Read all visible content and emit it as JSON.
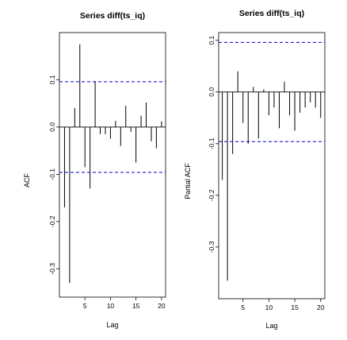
{
  "chart_data": [
    {
      "type": "bar",
      "title": "Series diff(ts_iq)",
      "xlabel": "Lag",
      "ylabel": "ACF",
      "xlim": [
        0,
        20.8
      ],
      "ylim": [
        -0.36,
        0.2
      ],
      "xticks": [
        5,
        10,
        15,
        20
      ],
      "yticks": [
        -0.3,
        -0.2,
        -0.1,
        0.0,
        0.1
      ],
      "ytick_labels": [
        "-0.3",
        "-0.2",
        "-0.1",
        "0.0",
        "0.1"
      ],
      "lags": [
        1,
        2,
        3,
        4,
        5,
        6,
        7,
        8,
        9,
        10,
        11,
        12,
        13,
        14,
        15,
        16,
        17,
        18,
        19,
        20
      ],
      "values": [
        -0.17,
        -0.33,
        0.04,
        0.175,
        -0.085,
        -0.13,
        0.097,
        -0.015,
        -0.015,
        -0.025,
        0.013,
        -0.04,
        0.045,
        -0.01,
        -0.075,
        0.024,
        0.052,
        -0.03,
        -0.045,
        0.012
      ],
      "confidence_band": 0.096,
      "band_color": "#0000cc",
      "bar_color": "#000000"
    },
    {
      "type": "bar",
      "title": "Series  diff(ts_iq)",
      "xlabel": "Lag",
      "ylabel": "Partial ACF",
      "xlim": [
        0.3,
        20.8
      ],
      "ylim": [
        -0.4,
        0.115
      ],
      "xticks": [
        5,
        10,
        15,
        20
      ],
      "yticks": [
        -0.3,
        -0.2,
        -0.1,
        0.0,
        0.1
      ],
      "ytick_labels": [
        "-0.3",
        "-0.2",
        "-0.1",
        "0.0",
        "0.1"
      ],
      "lags": [
        1,
        2,
        3,
        4,
        5,
        6,
        7,
        8,
        9,
        10,
        11,
        12,
        13,
        14,
        15,
        16,
        17,
        18,
        19,
        20
      ],
      "values": [
        -0.17,
        -0.365,
        -0.12,
        0.04,
        -0.06,
        -0.1,
        0.01,
        -0.09,
        0.005,
        -0.045,
        -0.03,
        -0.07,
        0.02,
        -0.045,
        -0.075,
        -0.04,
        -0.03,
        -0.02,
        -0.03,
        -0.05
      ],
      "confidence_band": 0.096,
      "band_color": "#0000cc",
      "bar_color": "#000000"
    }
  ]
}
